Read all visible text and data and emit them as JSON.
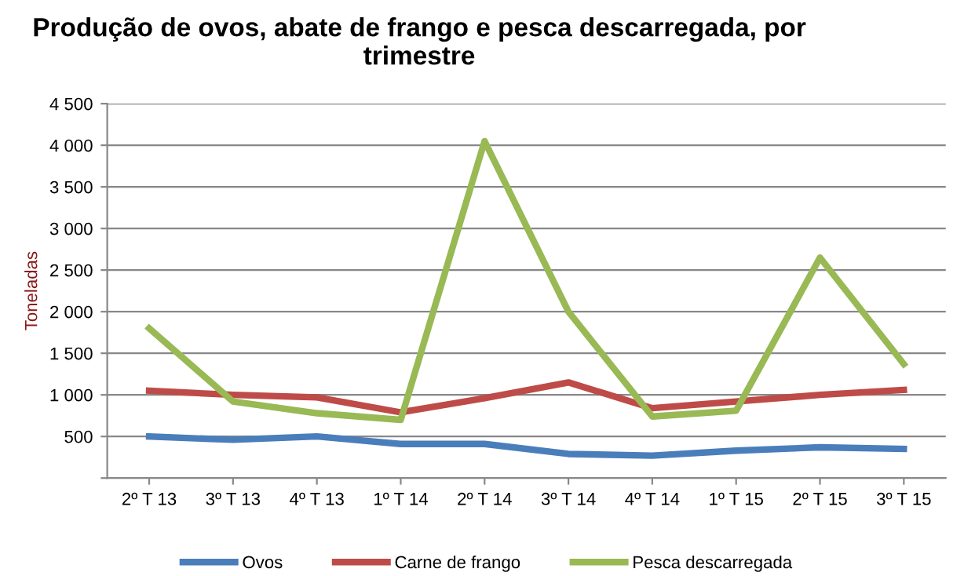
{
  "chart_data": {
    "type": "line",
    "title": "Produção de ovos, abate de frango e pesca descarregada, por trimestre",
    "ylabel": "Toneladas",
    "categories": [
      "2º T 13",
      "3º T 13",
      "4º T 13",
      "1º T 14",
      "2º T 14",
      "3º T 14",
      "4º T 14",
      "1º T 15",
      "2º T 15",
      "3º T 15"
    ],
    "series": [
      {
        "name": "Ovos",
        "color": "#4a7ebb",
        "values": [
          500,
          460,
          500,
          410,
          410,
          290,
          270,
          330,
          370,
          350
        ]
      },
      {
        "name": "Carne de frango",
        "color": "#be4b48",
        "values": [
          1050,
          1000,
          970,
          790,
          960,
          1150,
          840,
          920,
          1000,
          1060
        ]
      },
      {
        "name": "Pesca descarregada",
        "color": "#98b954",
        "values": [
          1800,
          920,
          780,
          700,
          4050,
          2000,
          740,
          810,
          2650,
          1370
        ]
      }
    ],
    "ylim": [
      0,
      4500
    ],
    "yticks": [
      {
        "value": 0,
        "label": null
      },
      {
        "value": 500,
        "label": "500"
      },
      {
        "value": 1000,
        "label": "1 000"
      },
      {
        "value": 1500,
        "label": "1 500"
      },
      {
        "value": 2000,
        "label": "2 000"
      },
      {
        "value": 2500,
        "label": "2 500"
      },
      {
        "value": 3000,
        "label": "3 000"
      },
      {
        "value": 3500,
        "label": "3 500"
      },
      {
        "value": 4000,
        "label": "4 000"
      },
      {
        "value": 4500,
        "label": "4 500"
      }
    ],
    "grid": "y",
    "legend": "bottom",
    "marker": "none",
    "line_style": "solid"
  }
}
